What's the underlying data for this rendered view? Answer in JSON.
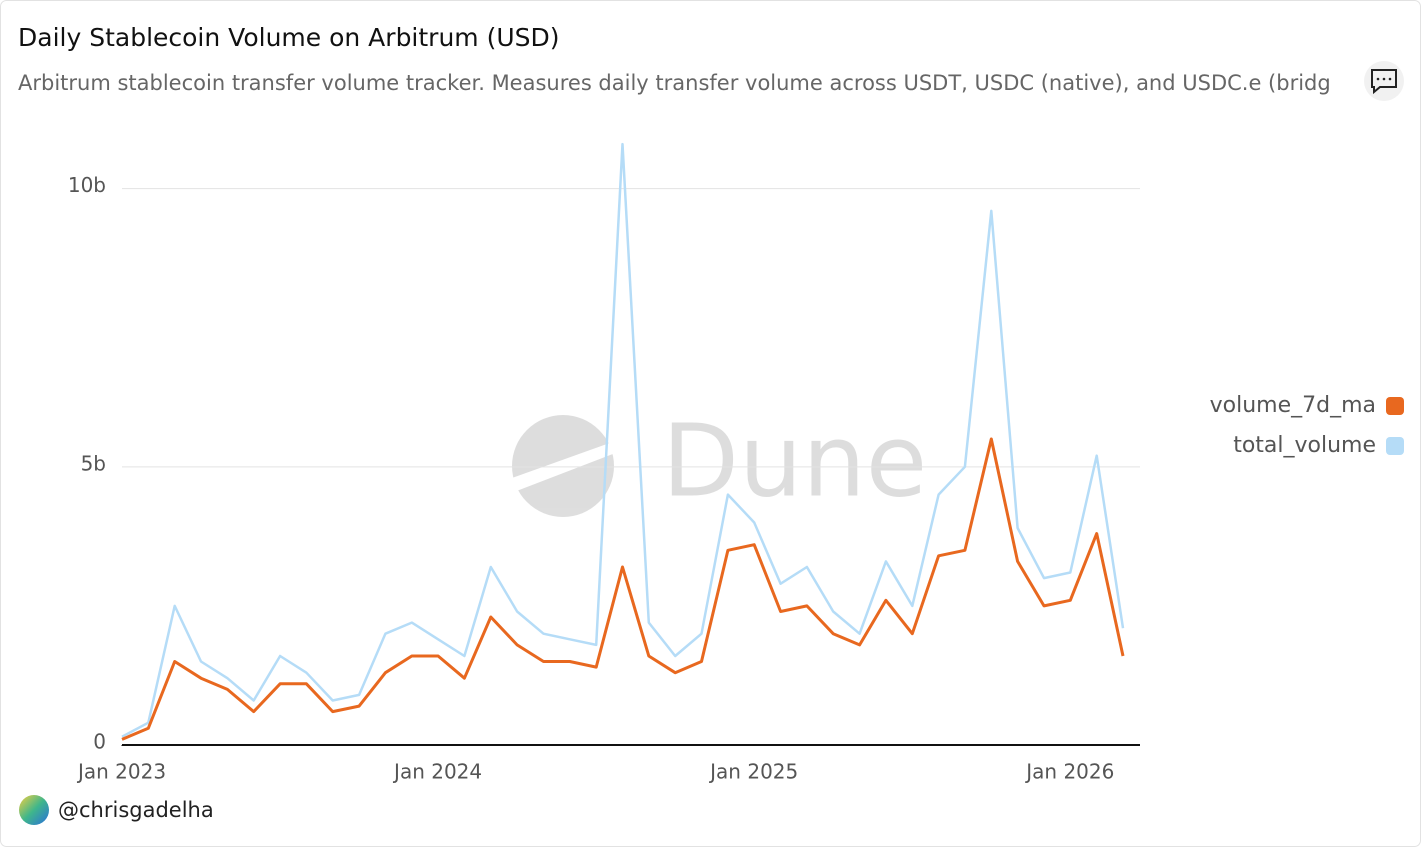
{
  "title": "Daily Stablecoin Volume on Arbitrum (USD)",
  "subtitle": "Arbitrum stablecoin transfer volume tracker. Measures daily transfer volume across USDT, USDC (native), and USDC.e (bridg",
  "author": "@chrisgadelha",
  "chart_data": {
    "type": "line",
    "watermark": "Dune",
    "x": [
      "2023-01",
      "2023-02",
      "2023-03",
      "2023-04",
      "2023-05",
      "2023-06",
      "2023-07",
      "2023-08",
      "2023-09",
      "2023-10",
      "2023-11",
      "2023-12",
      "2024-01",
      "2024-02",
      "2024-03",
      "2024-04",
      "2024-05",
      "2024-06",
      "2024-07",
      "2024-08",
      "2024-09",
      "2024-10",
      "2024-11",
      "2024-12",
      "2025-01",
      "2025-02",
      "2025-03",
      "2025-04",
      "2025-05",
      "2025-06",
      "2025-07",
      "2025-08",
      "2025-09",
      "2025-10",
      "2025-11",
      "2025-12",
      "2026-01",
      "2026-02",
      "2026-03"
    ],
    "series": [
      {
        "name": "total_volume",
        "color": "#b5dcf7",
        "values": [
          150000000.0,
          400000000.0,
          2500000000.0,
          1500000000.0,
          1200000000.0,
          800000000.0,
          1600000000.0,
          1300000000.0,
          800000000.0,
          900000000.0,
          2000000000.0,
          2200000000.0,
          1900000000.0,
          1600000000.0,
          3200000000.0,
          2400000000.0,
          2000000000.0,
          1900000000.0,
          1800000000.0,
          10800000000.0,
          2200000000.0,
          1600000000.0,
          2000000000.0,
          4500000000.0,
          4000000000.0,
          2900000000.0,
          3200000000.0,
          2400000000.0,
          2000000000.0,
          3300000000.0,
          2500000000.0,
          4500000000.0,
          5000000000.0,
          9600000000.0,
          3900000000.0,
          3000000000.0,
          3100000000.0,
          5200000000.0,
          2100000000.0
        ]
      },
      {
        "name": "volume_7d_ma",
        "color": "#e8681f",
        "values": [
          100000000.0,
          300000000.0,
          1500000000.0,
          1200000000.0,
          1000000000.0,
          600000000.0,
          1100000000.0,
          1100000000.0,
          600000000.0,
          700000000.0,
          1300000000.0,
          1600000000.0,
          1600000000.0,
          1200000000.0,
          2300000000.0,
          1800000000.0,
          1500000000.0,
          1500000000.0,
          1400000000.0,
          3200000000.0,
          1600000000.0,
          1300000000.0,
          1500000000.0,
          3500000000.0,
          3600000000.0,
          2400000000.0,
          2500000000.0,
          2000000000.0,
          1800000000.0,
          2600000000.0,
          2000000000.0,
          3400000000.0,
          3500000000.0,
          5500000000.0,
          3300000000.0,
          2500000000.0,
          2600000000.0,
          3800000000.0,
          1600000000.0
        ]
      }
    ],
    "legend_order": [
      1,
      0
    ],
    "legend": "right",
    "xlim": [
      "2023-01",
      "2026-03"
    ],
    "xticks": [
      {
        "value": "2023-01",
        "label": "Jan 2023"
      },
      {
        "value": "2024-01",
        "label": "Jan 2024"
      },
      {
        "value": "2025-01",
        "label": "Jan 2025"
      },
      {
        "value": "2026-01",
        "label": "Jan 2026"
      }
    ],
    "ylim": [
      0,
      11000000000.0
    ],
    "yticks": [
      0,
      {
        "value": 5000000000.0,
        "label": "5b"
      },
      {
        "value": 10000000000.0,
        "label": "10b"
      }
    ],
    "grid": true
  }
}
